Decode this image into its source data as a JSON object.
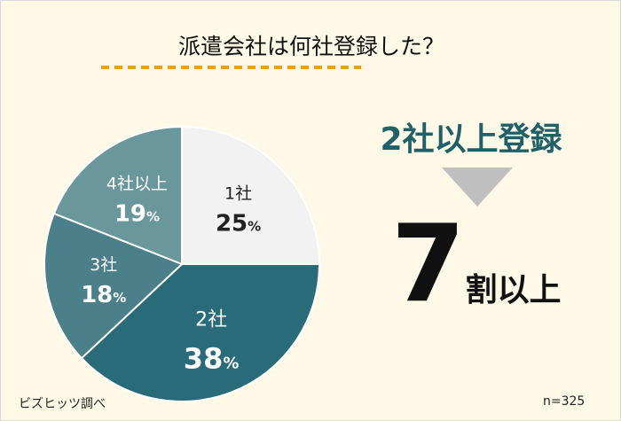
{
  "title": "派遣会社は何社登録した？",
  "headline": "2社以上登録",
  "conclusion": {
    "number": "7",
    "text": "割以上"
  },
  "source": "ビズヒッツ調べ",
  "sample": "n=325",
  "chart_data": {
    "type": "pie",
    "start": "top",
    "direction": "clockwise",
    "slices": [
      {
        "label": "1社",
        "value": 25,
        "display": "25",
        "color": "#f2f2f2",
        "text_color": "#222222"
      },
      {
        "label": "2社",
        "value": 38,
        "display": "38",
        "color": "#2a6b79",
        "text_color": "#ffffff"
      },
      {
        "label": "3社",
        "value": 18,
        "display": "18",
        "color": "#4b7f89",
        "text_color": "#ffffff"
      },
      {
        "label": "4社以上",
        "value": 19,
        "display": "19",
        "color": "#6a979b",
        "text_color": "#ffffff"
      }
    ],
    "unit": "%"
  }
}
